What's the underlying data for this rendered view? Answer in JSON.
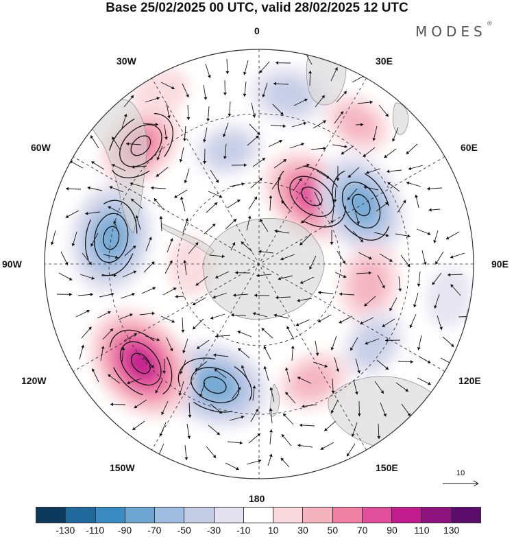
{
  "title": "Base 25/02/2025 00 UTC, valid 28/02/2025 12 UTC",
  "brand": "MODES",
  "brand_mark": "®",
  "longitude_labels": {
    "lon_0": "0",
    "lon_30e": "30E",
    "lon_60e": "60E",
    "lon_90e": "90E",
    "lon_120e": "120E",
    "lon_150e": "150E",
    "lon_180": "180",
    "lon_150w": "150W",
    "lon_120w": "120W",
    "lon_90w": "90W",
    "lon_60w": "60W",
    "lon_30w": "30W"
  },
  "reference_vector_label": "10",
  "colorbar": {
    "colors": [
      "#0b3a5c",
      "#1f6a9a",
      "#3a8bc2",
      "#6fa7d3",
      "#9fbde0",
      "#c4cde6",
      "#e4e2f1",
      "#ffffff",
      "#f9d9de",
      "#f5b3c0",
      "#f07fa4",
      "#e04e9c",
      "#c11c8d",
      "#8f137f",
      "#5a0d6b"
    ],
    "tick_labels": [
      "-130",
      "-110",
      "-90",
      "-70",
      "-50",
      "-30",
      "-10",
      "10",
      "30",
      "50",
      "70",
      "90",
      "110",
      "130"
    ],
    "anomaly_colors": {
      "-90": "#3a8bc2",
      "-70": "#6fa7d3",
      "-50": "#9fbde0",
      "-30": "#c4cde6",
      "-10": "#e4e2f1",
      "10": "#f9d9de",
      "30": "#f5b3c0",
      "50": "#f07fa4",
      "70": "#e04e9c",
      "90": "#c11c8d"
    }
  },
  "map": {
    "projection": "south-polar-stereographic",
    "anomalies": [
      {
        "lon": 345,
        "r": 0.55,
        "value": -30
      },
      {
        "lon": 10,
        "r": 0.8,
        "value": -40
      },
      {
        "lon": 35,
        "r": 0.8,
        "value": 30
      },
      {
        "lon": 38,
        "r": 0.4,
        "value": 75
      },
      {
        "lon": 60,
        "r": 0.55,
        "value": -75
      },
      {
        "lon": 100,
        "r": 0.52,
        "value": 45
      },
      {
        "lon": 125,
        "r": 0.65,
        "value": -35
      },
      {
        "lon": 155,
        "r": 0.6,
        "value": 35
      },
      {
        "lon": 200,
        "r": 0.6,
        "value": -80
      },
      {
        "lon": 230,
        "r": 0.72,
        "value": 90
      },
      {
        "lon": 280,
        "r": 0.7,
        "value": -80
      },
      {
        "lon": 315,
        "r": 0.78,
        "value": 55
      },
      {
        "lon": 268,
        "r": 0.32,
        "value": 20
      },
      {
        "lon": 330,
        "r": 0.92,
        "value": 20
      },
      {
        "lon": 100,
        "r": 0.9,
        "value": -20
      }
    ]
  }
}
